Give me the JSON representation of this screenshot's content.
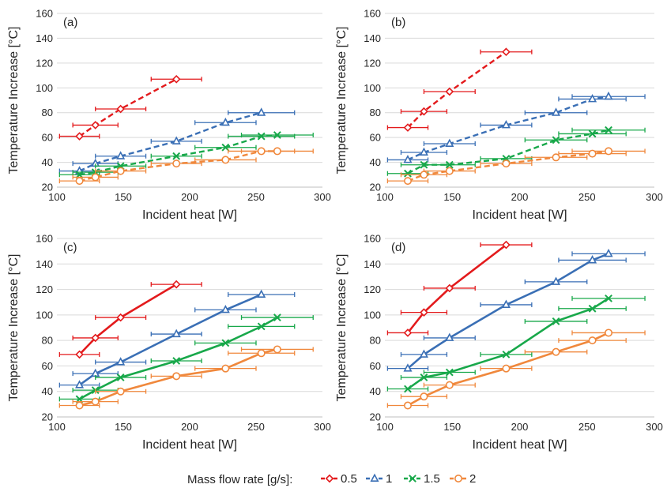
{
  "legend": {
    "title": "Mass flow rate [g/s]:",
    "entries": [
      {
        "label": "0.5",
        "color": "#e31a1c",
        "marker": "diamond-icon"
      },
      {
        "label": "1",
        "color": "#3a6fb5",
        "marker": "triangle-icon"
      },
      {
        "label": "1.5",
        "color": "#18a84a",
        "marker": "x-icon"
      },
      {
        "label": "2",
        "color": "#f0883c",
        "marker": "circle-icon"
      }
    ]
  },
  "chart_data": [
    {
      "type": "line",
      "panel_label": "(a)",
      "line_style": "dashed",
      "xlabel": "Incident heat [W]",
      "ylabel": "Temperature Increase [°C]",
      "xlim": [
        100,
        300
      ],
      "ylim": [
        20,
        160
      ],
      "xticks": [
        "100",
        "150",
        "200",
        "250",
        "300"
      ],
      "yticks": [
        "20",
        "40",
        "60",
        "80",
        "100",
        "120",
        "140",
        "160"
      ],
      "grid": "horizontal",
      "series": [
        {
          "name": "0.5",
          "x": [
            117,
            129,
            148,
            190
          ],
          "y": [
            61,
            70,
            83,
            107
          ],
          "xerr": [
            15,
            17,
            19,
            19
          ]
        },
        {
          "name": "1",
          "x": [
            117,
            129,
            148,
            190,
            227,
            254
          ],
          "y": [
            33,
            39,
            45,
            57,
            72,
            80
          ],
          "xerr": [
            15,
            17,
            19,
            19,
            23,
            25
          ]
        },
        {
          "name": "1.5",
          "x": [
            117,
            129,
            148,
            190,
            227,
            254,
            266
          ],
          "y": [
            30,
            32,
            37,
            45,
            52,
            61,
            62
          ],
          "xerr": [
            15,
            17,
            19,
            19,
            23,
            25,
            27
          ]
        },
        {
          "name": "2",
          "x": [
            117,
            129,
            148,
            190,
            227,
            254,
            266
          ],
          "y": [
            25,
            28,
            33,
            39,
            42,
            49,
            49
          ],
          "xerr": [
            15,
            17,
            19,
            19,
            23,
            25,
            27
          ]
        }
      ]
    },
    {
      "type": "line",
      "panel_label": "(b)",
      "line_style": "dashed",
      "xlabel": "Incident heat [W]",
      "ylabel": "Temperature Increase [°C]",
      "xlim": [
        100,
        300
      ],
      "ylim": [
        20,
        160
      ],
      "xticks": [
        "100",
        "150",
        "200",
        "250",
        "300"
      ],
      "yticks": [
        "20",
        "40",
        "60",
        "80",
        "100",
        "120",
        "140",
        "160"
      ],
      "grid": "horizontal",
      "series": [
        {
          "name": "0.5",
          "x": [
            117,
            129,
            148,
            190
          ],
          "y": [
            68,
            81,
            97,
            129
          ],
          "xerr": [
            15,
            17,
            19,
            19
          ]
        },
        {
          "name": "1",
          "x": [
            117,
            129,
            148,
            190,
            227,
            254,
            266
          ],
          "y": [
            42,
            48,
            55,
            70,
            80,
            91,
            93
          ],
          "xerr": [
            15,
            17,
            19,
            19,
            23,
            25,
            27
          ]
        },
        {
          "name": "1.5",
          "x": [
            117,
            129,
            148,
            190,
            227,
            254,
            266
          ],
          "y": [
            31,
            38,
            38,
            43,
            58,
            63,
            66
          ],
          "xerr": [
            15,
            17,
            19,
            19,
            23,
            25,
            27
          ]
        },
        {
          "name": "2",
          "x": [
            117,
            129,
            148,
            190,
            227,
            254,
            266
          ],
          "y": [
            25,
            30,
            33,
            39,
            44,
            47,
            49
          ],
          "xerr": [
            15,
            17,
            19,
            19,
            23,
            25,
            27
          ]
        }
      ]
    },
    {
      "type": "line",
      "panel_label": "(c)",
      "line_style": "solid",
      "xlabel": "Incident heat [W]",
      "ylabel": "Temperature Increase [°C]",
      "xlim": [
        100,
        300
      ],
      "ylim": [
        20,
        160
      ],
      "xticks": [
        "100",
        "150",
        "200",
        "250",
        "300"
      ],
      "yticks": [
        "20",
        "40",
        "60",
        "80",
        "100",
        "120",
        "140",
        "160"
      ],
      "grid": "horizontal",
      "series": [
        {
          "name": "0.5",
          "x": [
            117,
            129,
            148,
            190
          ],
          "y": [
            69,
            82,
            98,
            124
          ],
          "xerr": [
            15,
            17,
            19,
            19
          ]
        },
        {
          "name": "1",
          "x": [
            117,
            129,
            148,
            190,
            227,
            254
          ],
          "y": [
            45,
            54,
            63,
            85,
            104,
            116
          ],
          "xerr": [
            15,
            17,
            19,
            19,
            23,
            25
          ]
        },
        {
          "name": "1.5",
          "x": [
            117,
            129,
            148,
            190,
            227,
            254,
            266
          ],
          "y": [
            34,
            41,
            51,
            64,
            78,
            91,
            98
          ],
          "xerr": [
            15,
            17,
            19,
            19,
            23,
            25,
            27
          ]
        },
        {
          "name": "2",
          "x": [
            117,
            129,
            148,
            190,
            227,
            254,
            266
          ],
          "y": [
            29,
            32,
            40,
            52,
            58,
            70,
            73
          ],
          "xerr": [
            15,
            17,
            19,
            19,
            23,
            25,
            27
          ]
        }
      ]
    },
    {
      "type": "line",
      "panel_label": "(d)",
      "line_style": "solid",
      "xlabel": "Incident heat [W]",
      "ylabel": "Temperature Increase [°C]",
      "xlim": [
        100,
        300
      ],
      "ylim": [
        20,
        160
      ],
      "xticks": [
        "100",
        "150",
        "200",
        "250",
        "300"
      ],
      "yticks": [
        "20",
        "40",
        "60",
        "80",
        "100",
        "120",
        "140",
        "160"
      ],
      "grid": "horizontal",
      "series": [
        {
          "name": "0.5",
          "x": [
            117,
            129,
            148,
            190
          ],
          "y": [
            86,
            102,
            121,
            155
          ],
          "xerr": [
            15,
            17,
            19,
            19
          ]
        },
        {
          "name": "1",
          "x": [
            117,
            129,
            148,
            190,
            227,
            254,
            266
          ],
          "y": [
            58,
            69,
            82,
            108,
            126,
            143,
            148
          ],
          "xerr": [
            15,
            17,
            19,
            19,
            23,
            25,
            27
          ]
        },
        {
          "name": "1.5",
          "x": [
            117,
            129,
            148,
            190,
            227,
            254,
            266
          ],
          "y": [
            42,
            51,
            55,
            69,
            95,
            105,
            113
          ],
          "xerr": [
            15,
            17,
            19,
            19,
            23,
            25,
            27
          ]
        },
        {
          "name": "2",
          "x": [
            117,
            129,
            148,
            190,
            227,
            254,
            266
          ],
          "y": [
            29,
            36,
            45,
            58,
            71,
            80,
            86
          ],
          "xerr": [
            15,
            17,
            19,
            19,
            23,
            25,
            27
          ]
        }
      ]
    }
  ]
}
